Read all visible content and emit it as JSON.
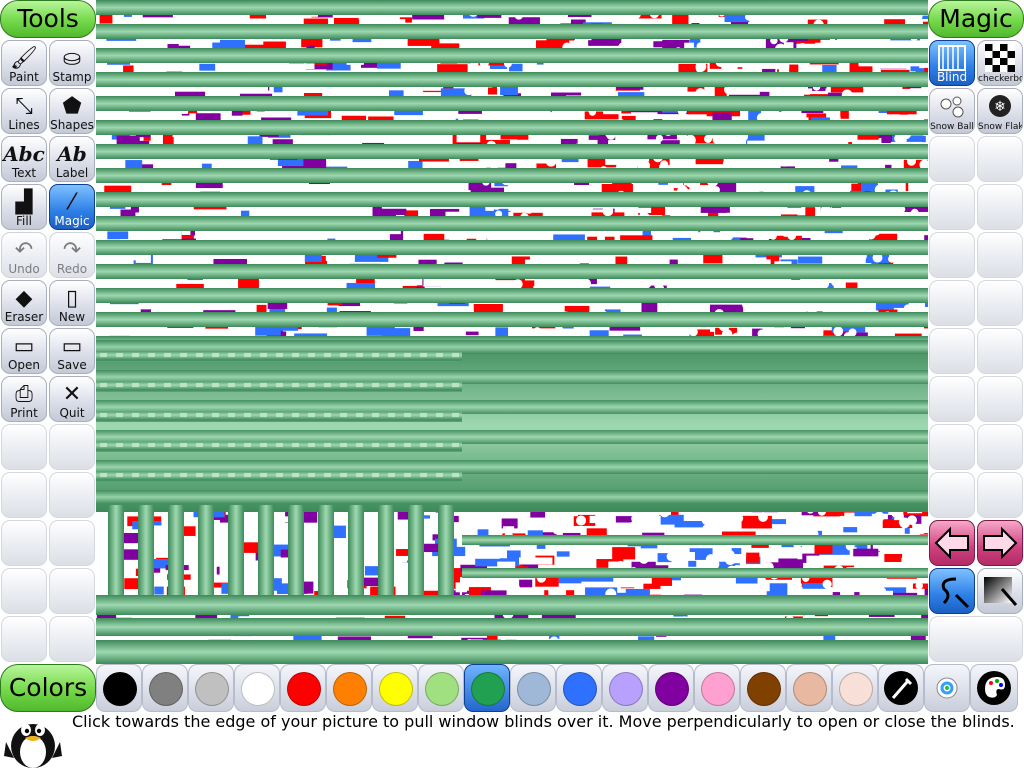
{
  "headers": {
    "tools": "Tools",
    "magic": "Magic",
    "colors": "Colors"
  },
  "tools": [
    {
      "label": "Paint",
      "icon": "paintbrush-icon",
      "glyph": "🖌"
    },
    {
      "label": "Stamp",
      "icon": "stamp-icon",
      "glyph": "⛀"
    },
    {
      "label": "Lines",
      "icon": "lines-icon",
      "glyph": "⤡"
    },
    {
      "label": "Shapes",
      "icon": "shapes-icon",
      "glyph": "⬟"
    },
    {
      "label": "Text",
      "icon": "text-icon",
      "glyph": "Abc"
    },
    {
      "label": "Label",
      "icon": "label-icon",
      "glyph": "Ab"
    },
    {
      "label": "Fill",
      "icon": "fill-bucket-icon",
      "glyph": "▟"
    },
    {
      "label": "Magic",
      "icon": "magic-wand-icon",
      "glyph": "⁄",
      "selected": true
    },
    {
      "label": "Undo",
      "icon": "undo-icon",
      "glyph": "↶",
      "dim": true
    },
    {
      "label": "Redo",
      "icon": "redo-icon",
      "glyph": "↷",
      "dim": true
    },
    {
      "label": "Eraser",
      "icon": "eraser-icon",
      "glyph": "◆"
    },
    {
      "label": "New",
      "icon": "new-page-icon",
      "glyph": "▯"
    },
    {
      "label": "Open",
      "icon": "open-book-icon",
      "glyph": "▭"
    },
    {
      "label": "Save",
      "icon": "save-book-icon",
      "glyph": "▭"
    },
    {
      "label": "Print",
      "icon": "printer-icon",
      "glyph": "⎙"
    },
    {
      "label": "Quit",
      "icon": "quit-x-icon",
      "glyph": "✕"
    }
  ],
  "magic": [
    {
      "label": "Blind",
      "icon": "blind-icon",
      "selected": true
    },
    {
      "label": "checkerboard",
      "icon": "checkerboard-icon",
      "small": true
    },
    {
      "label": "Snow Ball",
      "icon": "snowball-icon",
      "small": true
    },
    {
      "label": "Snow Flake",
      "icon": "snowflake-icon",
      "small": true
    }
  ],
  "magic_nav": {
    "prev_icon": "left-arrow-icon",
    "next_icon": "right-arrow-icon",
    "mode_icon": "paint-mode-icon",
    "fullscreen_icon": "fullscreen-magic-icon"
  },
  "colors": [
    "#000000",
    "#808080",
    "#c0c0c0",
    "#ffffff",
    "#ff0000",
    "#ff8000",
    "#ffff00",
    "#a0e080",
    "#20a050",
    "#a0b8d8",
    "#3070ff",
    "#b8a0ff",
    "#8000a0",
    "#ffa0d0",
    "#804000",
    "#e8b8a0",
    "#f8e0d8"
  ],
  "selected_color_index": 8,
  "color_tools": [
    {
      "icon": "color-picker-icon"
    },
    {
      "icon": "rainbow-palette-icon"
    },
    {
      "icon": "paint-palette-icon"
    }
  ],
  "status": "Click towards the edge of your picture to pull window blinds over it. Move perpendicularly to open or close the blinds.",
  "accent": {
    "button_selected": "#2d7fe6",
    "header_green": "#73d94a",
    "blind_green": "#5aa574",
    "arrow_pink": "#d0407e"
  }
}
